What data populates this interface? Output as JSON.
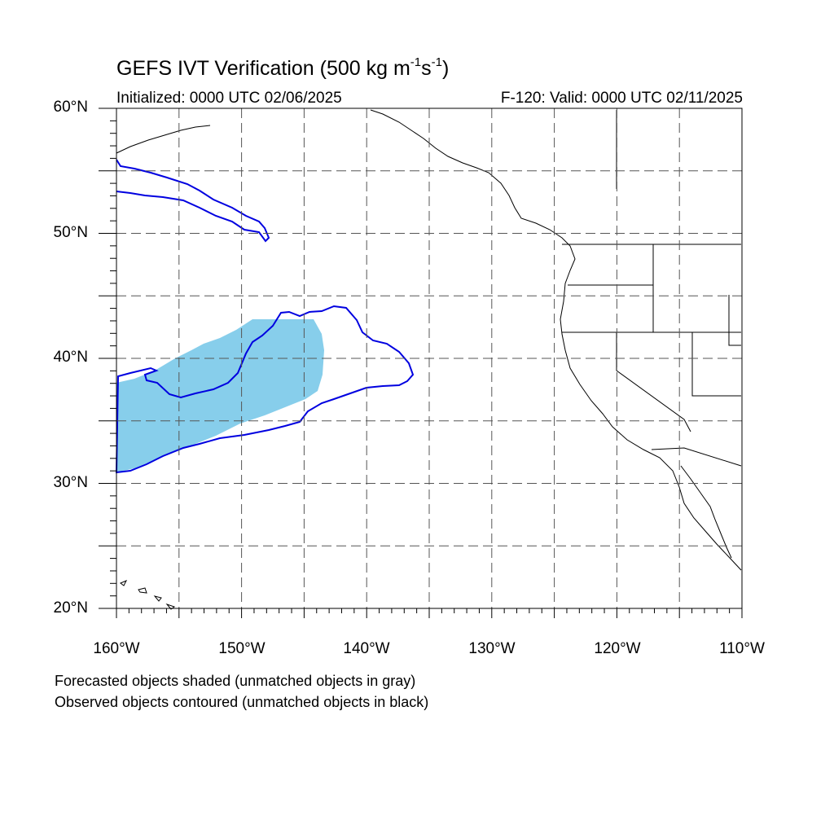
{
  "header": {
    "title_main": "GEFS IVT Verification (500 kg m",
    "title_sup1": "-1",
    "title_mid": "s",
    "title_sup2": "-1",
    "title_end": ")",
    "initialized": "Initialized: 0000 UTC 02/06/2025",
    "valid": "F-120: Valid: 0000 UTC 02/11/2025"
  },
  "axes": {
    "lat_labels": [
      "60°N",
      "50°N",
      "40°N",
      "30°N",
      "20°N"
    ],
    "lon_labels": [
      "160°W",
      "150°W",
      "140°W",
      "130°W",
      "120°W",
      "110°W"
    ],
    "lon_range": [
      -160,
      -110
    ],
    "lat_range": [
      20,
      60
    ],
    "gridlines": "dashed"
  },
  "legend": {
    "line1": "Forecasted objects shaded (unmatched objects in gray)",
    "line2": "Observed objects contoured (unmatched objects in black)"
  },
  "colors": {
    "forecast_fill": "#87ceeb",
    "observed_contour": "#0000e0",
    "coastline": "#000000",
    "grid": "#555555"
  }
}
